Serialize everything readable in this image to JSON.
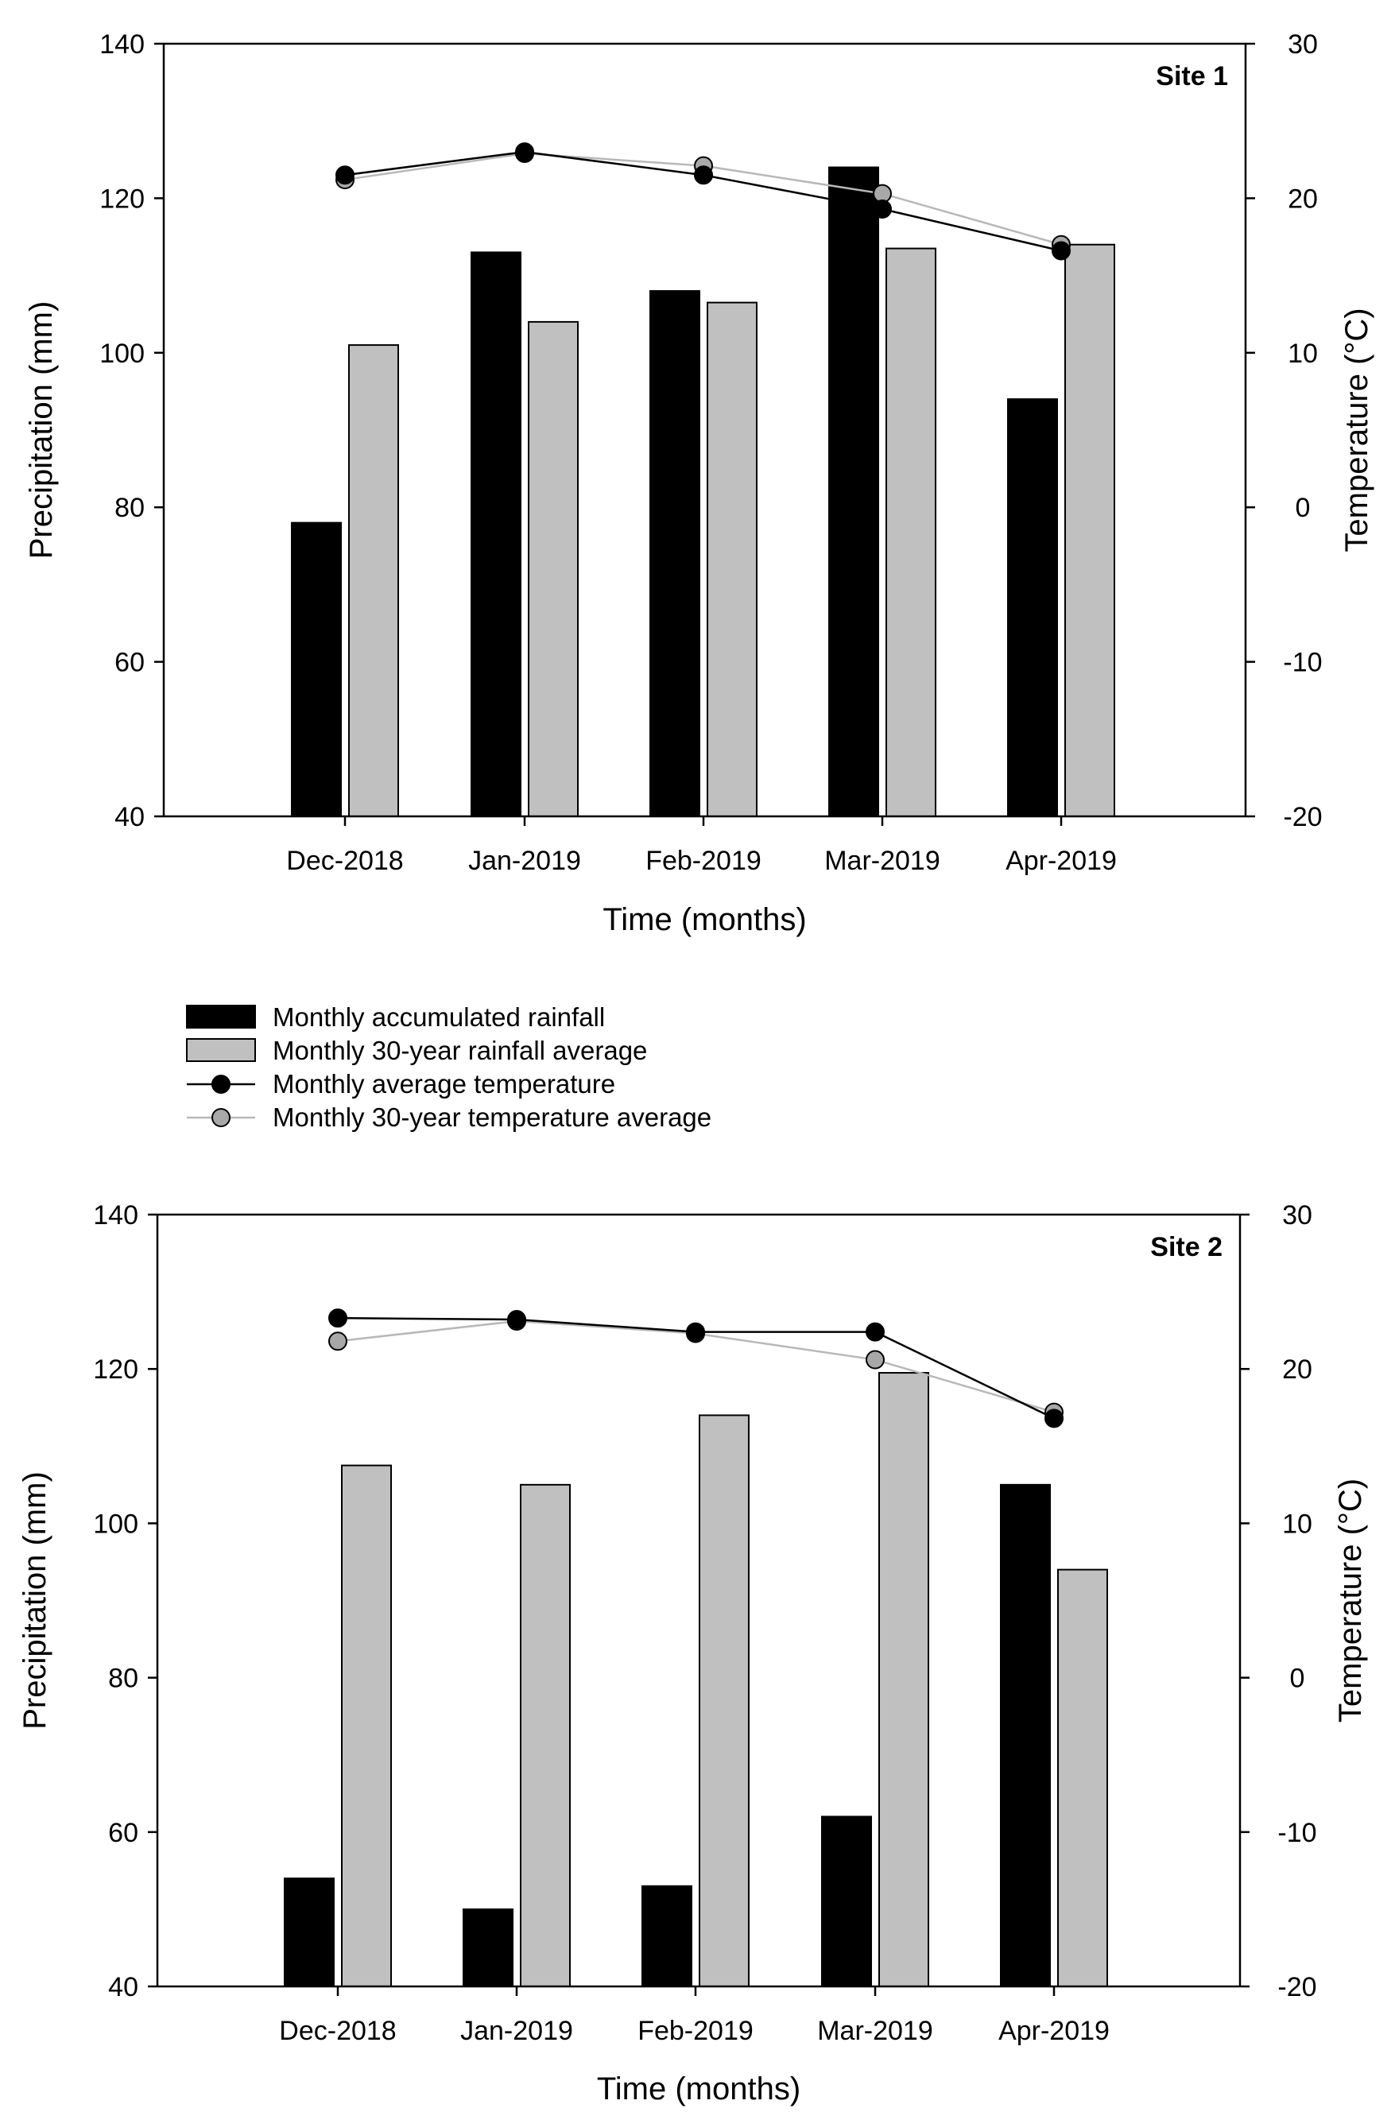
{
  "legend": {
    "rain": "Monthly accumulated rainfall",
    "rain_avg": "Monthly 30-year rainfall average",
    "temp": "Monthly average temperature",
    "temp_avg": "Monthly 30-year temperature average"
  },
  "colors": {
    "rain": "#000000",
    "rain_avg": "#c0c0c0",
    "temp_line": "#000000",
    "temp_avg_line": "#b8b8b8",
    "temp_avg_marker": "#a8a8a8"
  },
  "chart_data": [
    {
      "type": "bar",
      "title": "Site 1",
      "categories": [
        "Dec-2018",
        "Jan-2019",
        "Feb-2019",
        "Mar-2019",
        "Apr-2019"
      ],
      "xlabel": "Time (months)",
      "ylabel": "Precipitation (mm)",
      "y2label": "Temperature (°C)",
      "ylim": [
        40,
        140
      ],
      "yticks": [
        40,
        60,
        80,
        100,
        120,
        140
      ],
      "y2lim": [
        -20,
        30
      ],
      "y2ticks": [
        -20,
        -10,
        0,
        10,
        20,
        30
      ],
      "series": [
        {
          "name": "Monthly accumulated rainfall",
          "type": "bar",
          "axis": "left",
          "values": [
            78,
            113,
            108,
            124,
            94
          ]
        },
        {
          "name": "Monthly 30-year rainfall average",
          "type": "bar",
          "axis": "left",
          "values": [
            101,
            104,
            106.5,
            113.5,
            114
          ]
        },
        {
          "name": "Monthly average temperature",
          "type": "line",
          "axis": "right",
          "values": [
            21.5,
            23.0,
            21.5,
            19.3,
            16.6
          ]
        },
        {
          "name": "Monthly 30-year temperature average",
          "type": "line",
          "axis": "right",
          "values": [
            21.2,
            22.9,
            22.1,
            20.3,
            17.0
          ]
        }
      ]
    },
    {
      "type": "bar",
      "title": "Site 2",
      "categories": [
        "Dec-2018",
        "Jan-2019",
        "Feb-2019",
        "Mar-2019",
        "Apr-2019"
      ],
      "xlabel": "Time (months)",
      "ylabel": "Precipitation (mm)",
      "y2label": "Temperature (°C)",
      "ylim": [
        40,
        140
      ],
      "yticks": [
        40,
        60,
        80,
        100,
        120,
        140
      ],
      "y2lim": [
        -20,
        30
      ],
      "y2ticks": [
        -20,
        -10,
        0,
        10,
        20,
        30
      ],
      "series": [
        {
          "name": "Monthly accumulated rainfall",
          "type": "bar",
          "axis": "left",
          "values": [
            54,
            50,
            53,
            62,
            105
          ]
        },
        {
          "name": "Monthly 30-year rainfall average",
          "type": "bar",
          "axis": "left",
          "values": [
            107.5,
            105,
            114,
            119.5,
            94
          ]
        },
        {
          "name": "Monthly average temperature",
          "type": "line",
          "axis": "right",
          "values": [
            23.3,
            23.2,
            22.4,
            22.4,
            16.8
          ]
        },
        {
          "name": "Monthly 30-year temperature average",
          "type": "line",
          "axis": "right",
          "values": [
            21.8,
            23.1,
            22.3,
            20.6,
            17.2
          ]
        }
      ]
    }
  ]
}
